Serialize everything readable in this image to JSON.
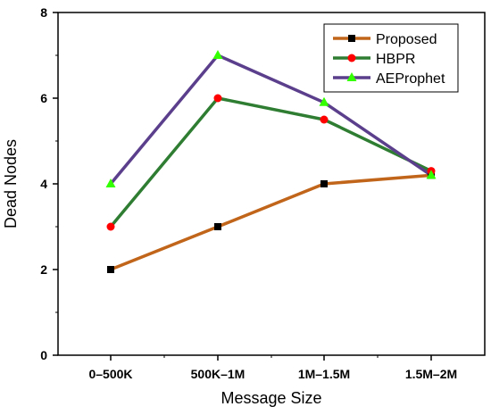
{
  "chart_data": {
    "type": "line",
    "xlabel": "Message Size",
    "ylabel": "Dead Nodes",
    "categories": [
      "0–500K",
      "500K–1M",
      "1M–1.5M",
      "1.5M–2M"
    ],
    "ylim": [
      0,
      8
    ],
    "yticks": [
      "0",
      "2",
      "4",
      "6",
      "8"
    ],
    "grid": false,
    "legend_position": "top-right",
    "series": [
      {
        "name": "Proposed",
        "values": [
          2,
          3,
          4,
          4.2
        ],
        "line_color": "#c0651a",
        "marker": "square",
        "marker_color": "#000000"
      },
      {
        "name": "HBPR",
        "values": [
          3,
          6,
          5.5,
          4.3
        ],
        "line_color": "#2e7d32",
        "marker": "circle",
        "marker_color": "#ff0000"
      },
      {
        "name": "AEProphet",
        "values": [
          4,
          7,
          5.9,
          4.2
        ],
        "line_color": "#5b3f8c",
        "marker": "triangle",
        "marker_color": "#33ff00"
      }
    ]
  }
}
